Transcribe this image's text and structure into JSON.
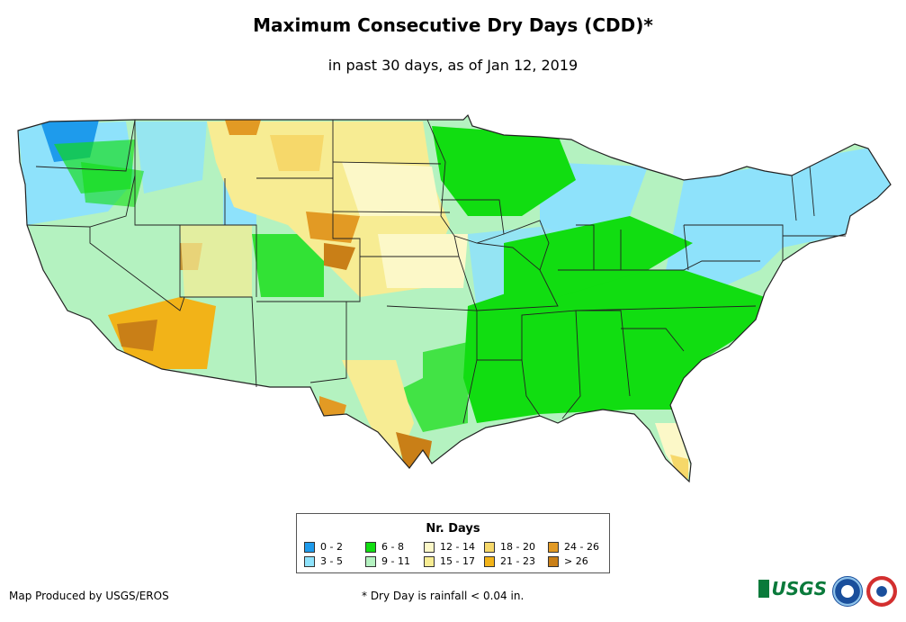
{
  "title": "Maximum Consecutive Dry Days (CDD)*",
  "subtitle": "in past 30 days, as of Jan 12, 2019",
  "legend": {
    "title": "Nr. Days",
    "items": [
      {
        "label": "0 - 2",
        "color": "#1e9bec"
      },
      {
        "label": "3 - 5",
        "color": "#8ee2fb"
      },
      {
        "label": "6 - 8",
        "color": "#11dd11"
      },
      {
        "label": "9 - 11",
        "color": "#b4f2c0"
      },
      {
        "label": "12 - 14",
        "color": "#fcf8c8"
      },
      {
        "label": "15 - 17",
        "color": "#f7ec93"
      },
      {
        "label": "18 - 20",
        "color": "#f6d86a"
      },
      {
        "label": "21 - 23",
        "color": "#f2b318"
      },
      {
        "label": "24 - 26",
        "color": "#e29a24"
      },
      {
        "label": "> 26",
        "color": "#c97f17"
      }
    ]
  },
  "credit": "Map Produced by USGS/EROS",
  "footnote": "* Dry Day is rainfall < 0.04 in.",
  "logos": {
    "usgs": "USGS",
    "icons": [
      "usgs-logo-icon",
      "noaa-logo-icon",
      "nws-logo-icon"
    ]
  }
}
